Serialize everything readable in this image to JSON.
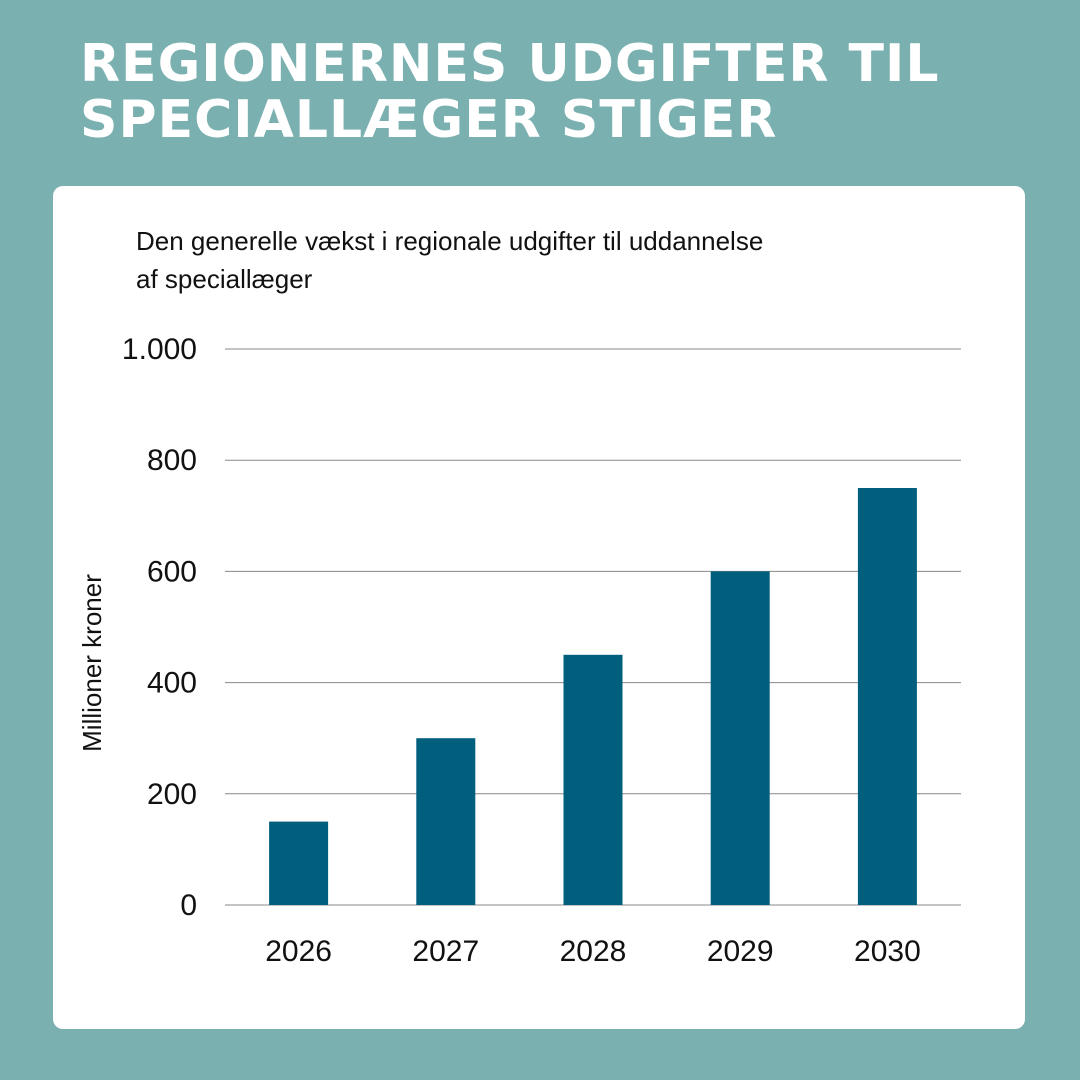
{
  "header": {
    "title_line1": "REGIONERNES UDGIFTER TIL",
    "title_line2": "SPECIALLÆGER STIGER"
  },
  "colors": {
    "background": "#7ab0b0",
    "card": "#ffffff",
    "bar": "#005f7d",
    "gridline": "#888888",
    "text": "#111111"
  },
  "chart_data": {
    "type": "bar",
    "title_line1": "Den generelle vækst i regionale udgifter til uddannelse",
    "title_line2": "af speciallæger",
    "ylabel": "Millioner kroner",
    "xlabel": "",
    "categories": [
      "2026",
      "2027",
      "2028",
      "2029",
      "2030"
    ],
    "values": [
      150,
      300,
      450,
      600,
      750
    ],
    "ylim": [
      0,
      1000
    ],
    "yticks": [
      0,
      200,
      400,
      600,
      800,
      1000
    ],
    "ytick_labels": [
      "0",
      "200",
      "400",
      "600",
      "800",
      "1.000"
    ],
    "grid": true,
    "legend": "none"
  }
}
